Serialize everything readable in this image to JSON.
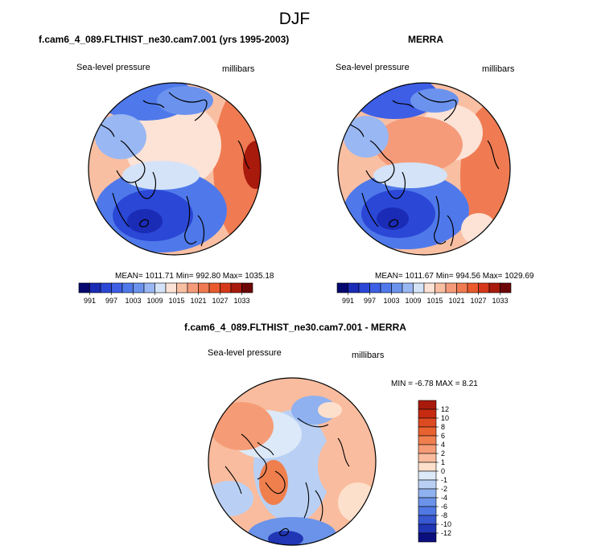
{
  "figure": {
    "title": "DJF"
  },
  "panels": [
    {
      "title": "f.cam6_4_089.FLTHIST_ne30.cam7.001 (yrs 1995-2003)",
      "left_label": "Sea-level pressure",
      "right_label": "millibars",
      "stats": "MEAN= 1011.71   Min= 992.80   Max= 1035.18"
    },
    {
      "title": "MERRA",
      "left_label": "Sea-level pressure",
      "right_label": "millibars",
      "stats": "MEAN= 1011.67   Min= 994.56   Max= 1029.69"
    },
    {
      "title": "f.cam6_4_089.FLTHIST_ne30.cam7.001 - MERRA",
      "left_label": "Sea-level pressure",
      "right_label": "millibars",
      "stats": "MIN =  -6.78 MAX =   8.21"
    }
  ],
  "chart_data": [
    {
      "type": "heatmap",
      "projection": "north polar stereographic",
      "title": "f.cam6_4_089.FLTHIST_ne30.cam7.001 (yrs 1995-2003)",
      "variable": "Sea-level pressure",
      "units": "millibars",
      "mean": 1011.71,
      "min": 992.8,
      "max": 1035.18,
      "colorbar": {
        "orientation": "horizontal",
        "levels": [
          991,
          994,
          997,
          1000,
          1003,
          1006,
          1009,
          1012,
          1015,
          1018,
          1021,
          1024,
          1027,
          1030,
          1033
        ],
        "tick_labels": [
          "991",
          "997",
          "1003",
          "1009",
          "1015",
          "1021",
          "1027",
          "1033"
        ],
        "colors": [
          "#05086e",
          "#1a2bb6",
          "#2b47d6",
          "#3d5ee5",
          "#4f79ea",
          "#6b93ee",
          "#99b7f2",
          "#d4e3f8",
          "#fde2d6",
          "#f9bfa3",
          "#f59b7a",
          "#f07b52",
          "#ea5a2d",
          "#d6381a",
          "#a81a0c",
          "#6d0608"
        ]
      }
    },
    {
      "type": "heatmap",
      "projection": "north polar stereographic",
      "title": "MERRA",
      "variable": "Sea-level pressure",
      "units": "millibars",
      "mean": 1011.67,
      "min": 994.56,
      "max": 1029.69,
      "colorbar": {
        "orientation": "horizontal",
        "levels": [
          991,
          994,
          997,
          1000,
          1003,
          1006,
          1009,
          1012,
          1015,
          1018,
          1021,
          1024,
          1027,
          1030,
          1033
        ],
        "tick_labels": [
          "991",
          "997",
          "1003",
          "1009",
          "1015",
          "1021",
          "1027",
          "1033"
        ],
        "colors": [
          "#05086e",
          "#1a2bb6",
          "#2b47d6",
          "#3d5ee5",
          "#4f79ea",
          "#6b93ee",
          "#99b7f2",
          "#d4e3f8",
          "#fde2d6",
          "#f9bfa3",
          "#f59b7a",
          "#f07b52",
          "#ea5a2d",
          "#d6381a",
          "#a81a0c",
          "#6d0608"
        ]
      }
    },
    {
      "type": "heatmap",
      "projection": "north polar stereographic",
      "title": "f.cam6_4_089.FLTHIST_ne30.cam7.001 - MERRA",
      "variable": "Sea-level pressure",
      "units": "millibars",
      "min": -6.78,
      "max": 8.21,
      "colorbar": {
        "orientation": "vertical",
        "levels": [
          -12,
          -10,
          -8,
          -6,
          -4,
          -2,
          -1,
          0,
          1,
          2,
          4,
          6,
          8,
          10,
          12
        ],
        "tick_labels": [
          "12",
          "10",
          "8",
          "6",
          "4",
          "2",
          "1",
          "0",
          "-1",
          "-2",
          "-4",
          "-6",
          "-8",
          "-10",
          "-12"
        ],
        "colors_top_to_bottom": [
          "#a81a0c",
          "#c62b12",
          "#dc4a22",
          "#e8622f",
          "#f07f4e",
          "#f59c76",
          "#fabc9e",
          "#fde0cc",
          "#dce9f8",
          "#b9d0f4",
          "#8fb1ef",
          "#6b93ea",
          "#4f78e2",
          "#3858d2",
          "#2036b5",
          "#0b0f7e"
        ]
      }
    }
  ]
}
